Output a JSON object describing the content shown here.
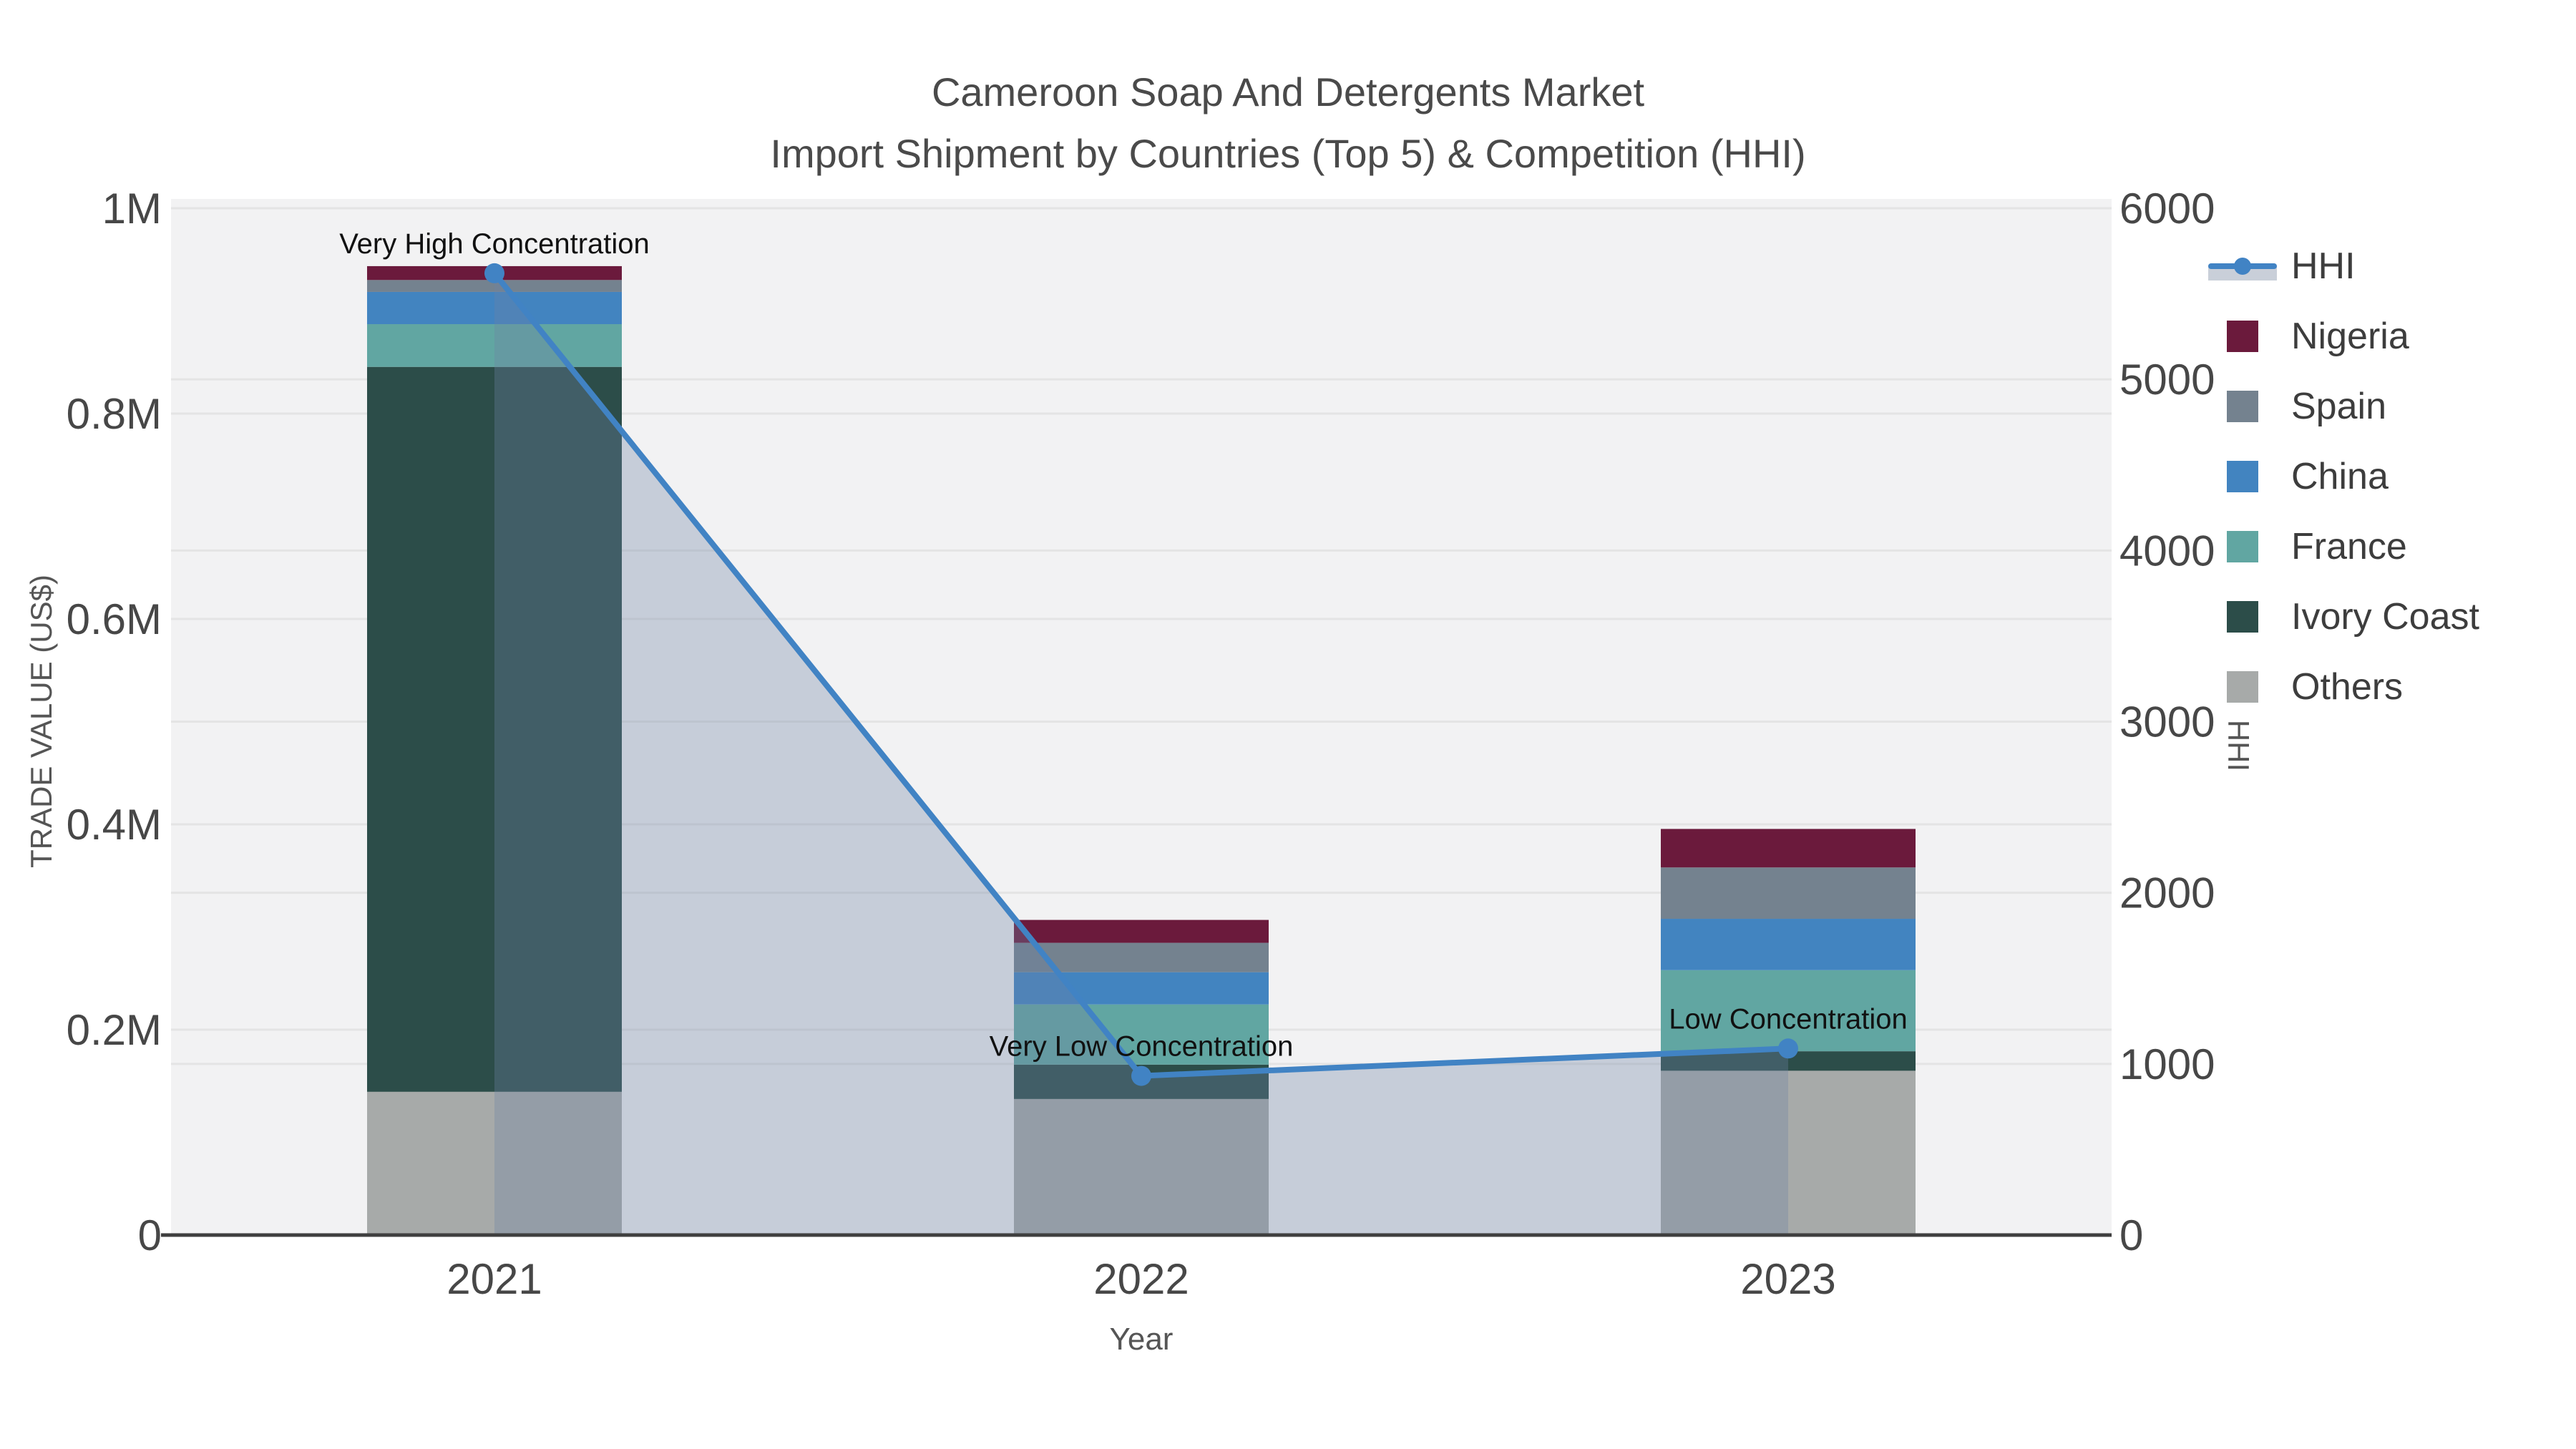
{
  "title": {
    "line1": "Cameroon Soap And Detergents Market",
    "line2": "Import Shipment by Countries (Top 5) & Competition (HHI)"
  },
  "axes": {
    "x_title": "Year",
    "y_left_title": "TRADE VALUE (US$)",
    "y_right_title": "HHI"
  },
  "legend": {
    "items": [
      {
        "label": "HHI",
        "type": "line",
        "color": "#4183c4",
        "band_color": "#c9cfd9"
      },
      {
        "label": "Nigeria",
        "type": "square",
        "color": "#6b1a3c"
      },
      {
        "label": "Spain",
        "type": "square",
        "color": "#74828f"
      },
      {
        "label": "China",
        "type": "square",
        "color": "#4284c0"
      },
      {
        "label": "France",
        "type": "square",
        "color": "#61a6a2"
      },
      {
        "label": "Ivory Coast",
        "type": "square",
        "color": "#2c4d49"
      },
      {
        "label": "Others",
        "type": "square",
        "color": "#a7aaa9"
      }
    ]
  },
  "chart_data": {
    "type": "combo",
    "subtypes": [
      "stacked-bar",
      "line"
    ],
    "categories": [
      "2021",
      "2022",
      "2023"
    ],
    "bar_series": [
      {
        "name": "Nigeria",
        "color": "#6b1a3c",
        "values": [
          13500,
          22300,
          37500
        ]
      },
      {
        "name": "Spain",
        "color": "#74828f",
        "values": [
          11600,
          28600,
          50000
        ]
      },
      {
        "name": "China",
        "color": "#4284c0",
        "values": [
          31400,
          31400,
          50000
        ]
      },
      {
        "name": "France",
        "color": "#61a6a2",
        "values": [
          41600,
          58600,
          79000
        ]
      },
      {
        "name": "Ivory Coast",
        "color": "#2c4d49",
        "values": [
          706000,
          33500,
          19000
        ]
      },
      {
        "name": "Others",
        "color": "#a7aaa9",
        "values": [
          139500,
          132500,
          160000
        ]
      }
    ],
    "stack_order_bottom_to_top": [
      "Others",
      "Ivory Coast",
      "France",
      "China",
      "Spain",
      "Nigeria"
    ],
    "line_series": {
      "name": "HHI",
      "color": "#4183c4",
      "fill": "rgba(110,131,165,0.33)",
      "values": [
        5620,
        930,
        1090
      ]
    },
    "annotations": [
      {
        "category": "2021",
        "text": "Very High Concentration"
      },
      {
        "category": "2022",
        "text": "Very Low Concentration"
      },
      {
        "category": "2023",
        "text": "Low Concentration"
      }
    ],
    "y_left": {
      "title": "TRADE VALUE (US$)",
      "range": [
        0,
        1000000
      ],
      "ticks": [
        {
          "label": "0",
          "value": 0
        },
        {
          "label": "0.2M",
          "value": 200000
        },
        {
          "label": "0.4M",
          "value": 400000
        },
        {
          "label": "0.6M",
          "value": 600000
        },
        {
          "label": "0.8M",
          "value": 800000
        },
        {
          "label": "1M",
          "value": 1000000
        }
      ]
    },
    "y_right": {
      "title": "HHI",
      "range": [
        0,
        6000
      ],
      "ticks": [
        {
          "label": "0",
          "value": 0
        },
        {
          "label": "1000",
          "value": 1000
        },
        {
          "label": "2000",
          "value": 2000
        },
        {
          "label": "3000",
          "value": 3000
        },
        {
          "label": "4000",
          "value": 4000
        },
        {
          "label": "5000",
          "value": 5000
        },
        {
          "label": "6000",
          "value": 6000
        }
      ]
    },
    "grid": true,
    "legend_position": "right"
  },
  "colors": {
    "plot_bg": "#f2f2f3",
    "gridline": "#e4e4e4",
    "axis_line": "#3f3f3f",
    "tick_text": "#474747",
    "annotation_text": "#111111"
  }
}
